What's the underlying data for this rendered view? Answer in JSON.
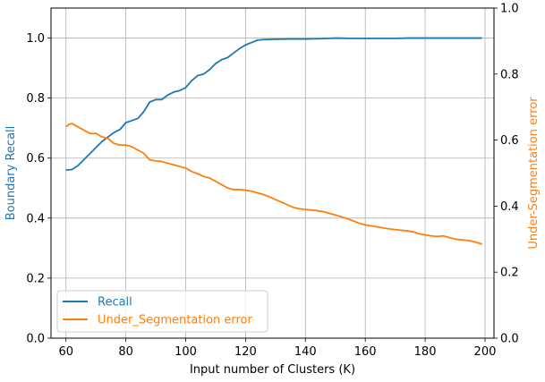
{
  "chart_data": {
    "type": "line",
    "xlabel": "Input number of Clusters (K)",
    "ylabel_left": "Boundary Recall",
    "ylabel_right": "Under-Segmentation error",
    "xlim": [
      55,
      203
    ],
    "ylim_left": [
      0.0,
      1.1
    ],
    "ylim_right": [
      0.0,
      1.0
    ],
    "x_ticks": [
      60,
      80,
      100,
      120,
      140,
      160,
      180,
      200
    ],
    "y_ticks_left": [
      0.0,
      0.2,
      0.4,
      0.6,
      0.8,
      1.0
    ],
    "y_ticks_right": [
      0.0,
      0.2,
      0.4,
      0.6,
      0.8,
      1.0
    ],
    "grid": true,
    "legend_position": "lower-left",
    "colors": {
      "recall": "#1f77b4",
      "under_seg": "#ff7f0e"
    },
    "series": [
      {
        "name": "Recall",
        "axis": "left",
        "x": [
          60,
          62,
          64,
          66,
          68,
          70,
          72,
          74,
          76,
          78,
          80,
          82,
          84,
          86,
          88,
          90,
          92,
          94,
          96,
          98,
          100,
          102,
          104,
          106,
          108,
          110,
          112,
          114,
          116,
          118,
          120,
          122,
          124,
          126,
          130,
          135,
          140,
          145,
          150,
          155,
          160,
          165,
          170,
          175,
          180,
          185,
          190,
          195,
          199
        ],
        "y": [
          0.56,
          0.562,
          0.575,
          0.595,
          0.615,
          0.635,
          0.655,
          0.67,
          0.685,
          0.695,
          0.718,
          0.725,
          0.732,
          0.755,
          0.787,
          0.795,
          0.795,
          0.81,
          0.82,
          0.825,
          0.835,
          0.858,
          0.875,
          0.88,
          0.895,
          0.915,
          0.928,
          0.935,
          0.95,
          0.965,
          0.977,
          0.985,
          0.993,
          0.995,
          0.996,
          0.997,
          0.997,
          0.998,
          1.0,
          0.999,
          0.999,
          0.999,
          0.999,
          1.0,
          1.0,
          1.0,
          1.0,
          1.0,
          1.0
        ]
      },
      {
        "name": "Under_Segmentation error",
        "axis": "right",
        "x": [
          60,
          61,
          62,
          64,
          66,
          68,
          70,
          72,
          74,
          76,
          78,
          80,
          82,
          84,
          86,
          88,
          90,
          92,
          94,
          96,
          98,
          100,
          102,
          104,
          106,
          108,
          110,
          112,
          114,
          116,
          118,
          120,
          122,
          124,
          126,
          128,
          130,
          132,
          134,
          136,
          138,
          140,
          142,
          144,
          146,
          148,
          150,
          152,
          154,
          156,
          158,
          160,
          162,
          164,
          166,
          168,
          170,
          172,
          174,
          176,
          178,
          180,
          182,
          184,
          186,
          188,
          190,
          192,
          194,
          196,
          198,
          199
        ],
        "y": [
          0.64,
          0.648,
          0.65,
          0.64,
          0.63,
          0.62,
          0.62,
          0.61,
          0.605,
          0.59,
          0.585,
          0.585,
          0.58,
          0.57,
          0.56,
          0.54,
          0.537,
          0.535,
          0.53,
          0.525,
          0.52,
          0.515,
          0.505,
          0.498,
          0.49,
          0.485,
          0.475,
          0.465,
          0.455,
          0.45,
          0.45,
          0.448,
          0.445,
          0.44,
          0.435,
          0.428,
          0.42,
          0.412,
          0.404,
          0.396,
          0.392,
          0.39,
          0.388,
          0.386,
          0.383,
          0.378,
          0.373,
          0.368,
          0.362,
          0.355,
          0.348,
          0.343,
          0.34,
          0.337,
          0.334,
          0.331,
          0.329,
          0.327,
          0.325,
          0.322,
          0.316,
          0.313,
          0.31,
          0.308,
          0.31,
          0.305,
          0.3,
          0.298,
          0.296,
          0.293,
          0.288,
          0.285
        ]
      }
    ]
  }
}
